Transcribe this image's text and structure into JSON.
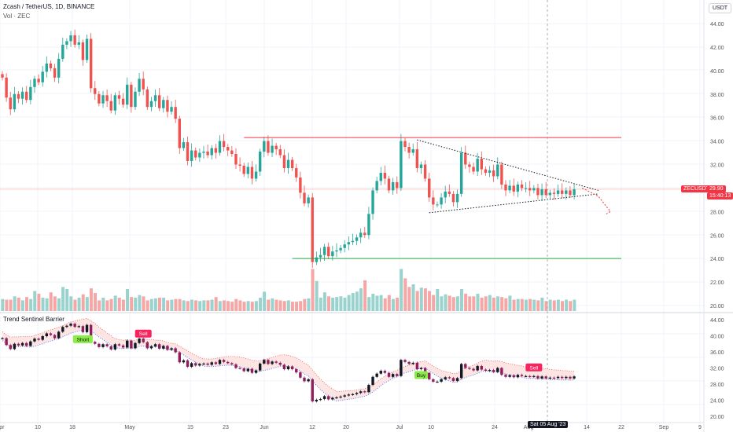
{
  "header": {
    "title": "Zcash / TetherUS, 1D, BINANCE",
    "volume_label": "Vol · ZEC",
    "currency_button": "USDT"
  },
  "indicator": {
    "title": "Trend Sentinel Barrier"
  },
  "price_tag": {
    "symbol": "ZECUSDT",
    "price": "29.90",
    "countdown": "15:40:13"
  },
  "crosshair_date": "Sat 05 Aug '23",
  "colors": {
    "up": "#26a69a",
    "down": "#ef5350",
    "resistance": "#f23645",
    "support": "#22ab46",
    "sell": "#f7245f",
    "buy": "#8bec46"
  },
  "chart_data": [
    {
      "type": "candlestick",
      "panel": "price",
      "ylim": [
        19.5,
        45.5
      ],
      "y_ticks": [
        "44.00",
        "42.00",
        "40.00",
        "38.00",
        "36.00",
        "34.00",
        "32.00",
        "30.00",
        "28.00",
        "26.00",
        "24.00",
        "22.00",
        "20.00"
      ],
      "x_ticks": [
        "Apr",
        "10",
        "18",
        "May",
        "15",
        "23",
        "Jun",
        "12",
        "20",
        "Jul",
        "10",
        "24",
        "Aug",
        "14",
        "22",
        "Sep",
        "9"
      ],
      "close": [
        39.4,
        37.7,
        36.7,
        38.0,
        37.6,
        38.2,
        37.5,
        38.6,
        39.3,
        39.0,
        39.9,
        40.6,
        40.2,
        39.4,
        41.0,
        42.2,
        42.5,
        43.0,
        42.2,
        42.4,
        40.9,
        42.7,
        38.5,
        38.0,
        37.2,
        37.9,
        37.4,
        36.6,
        37.9,
        37.6,
        37.1,
        38.8,
        36.9,
        38.2,
        39.3,
        38.4,
        36.9,
        37.4,
        37.9,
        36.8,
        37.5,
        36.5,
        36.9,
        35.9,
        33.4,
        33.9,
        32.3,
        33.2,
        32.6,
        33.0,
        33.1,
        32.8,
        33.4,
        33.0,
        34.0,
        33.5,
        33.2,
        32.9,
        32.0,
        31.9,
        31.2,
        31.8,
        30.8,
        31.4,
        33.1,
        34.0,
        33.0,
        33.6,
        33.3,
        32.8,
        31.7,
        32.4,
        31.7,
        30.9,
        29.6,
        28.7,
        29.2,
        23.7,
        24.1,
        24.3,
        25.0,
        24.2,
        24.6,
        24.7,
        24.9,
        25.2,
        25.4,
        25.5,
        25.8,
        26.2,
        26.0,
        27.8,
        29.8,
        30.6,
        31.3,
        30.8,
        29.8,
        30.5,
        30.0,
        34.0,
        33.5,
        33.0,
        33.3,
        31.7,
        32.0,
        30.8,
        29.2,
        28.6,
        28.6,
        29.2,
        29.7,
        29.5,
        28.8,
        29.5,
        33.0,
        32.0,
        31.8,
        31.4,
        32.5,
        31.6,
        31.3,
        31.5,
        31.0,
        32.0,
        30.3,
        29.8,
        30.2,
        29.7,
        30.3,
        30.0,
        30.0,
        29.8,
        30.0,
        29.4,
        29.9,
        29.4,
        29.6,
        29.5,
        29.8,
        29.5,
        29.8,
        29.4,
        29.9
      ],
      "volume_ylim": [
        0,
        100
      ],
      "volume": [
        18,
        17,
        17,
        22,
        20,
        16,
        21,
        18,
        30,
        26,
        20,
        19,
        28,
        22,
        19,
        36,
        33,
        22,
        17,
        20,
        25,
        21,
        34,
        27,
        16,
        20,
        16,
        18,
        23,
        20,
        17,
        33,
        21,
        20,
        24,
        22,
        16,
        18,
        19,
        20,
        20,
        16,
        17,
        18,
        18,
        16,
        15,
        17,
        16,
        15,
        16,
        16,
        17,
        21,
        15,
        16,
        15,
        14,
        18,
        16,
        14,
        15,
        14,
        15,
        20,
        29,
        17,
        19,
        17,
        16,
        15,
        16,
        14,
        14,
        15,
        18,
        19,
        63,
        45,
        20,
        28,
        22,
        20,
        21,
        22,
        20,
        24,
        27,
        29,
        34,
        46,
        21,
        26,
        23,
        24,
        19,
        24,
        18,
        20,
        63,
        49,
        36,
        40,
        30,
        35,
        34,
        30,
        24,
        33,
        22,
        25,
        23,
        21,
        22,
        33,
        26,
        22,
        22,
        26,
        20,
        22,
        24,
        20,
        22,
        21,
        19,
        23,
        17,
        18,
        18,
        17,
        18,
        17,
        16,
        20,
        15,
        17,
        16,
        17,
        15,
        17,
        15,
        17
      ]
    },
    {
      "type": "line",
      "panel": "indicator",
      "name": "Trend Sentinel Barrier",
      "ylim": [
        19.5,
        45.0
      ],
      "y_ticks": [
        "44.00",
        "40.00",
        "36.00",
        "32.00",
        "28.00",
        "24.00",
        "20.00"
      ],
      "signals": [
        {
          "label": "Short",
          "type": "buy",
          "candle": 20
        },
        {
          "label": "Sell",
          "type": "sell",
          "candle": 35
        },
        {
          "label": "Buy",
          "type": "buy",
          "candle": 104
        },
        {
          "label": "Sell",
          "type": "sell",
          "candle": 132
        }
      ]
    }
  ],
  "annotations": {
    "resistance_level": 34.3,
    "support_level": 24.0,
    "triangle_upper": [
      {
        "candle": 103,
        "price": 34.1
      },
      {
        "candle": 148,
        "price": 29.8
      }
    ],
    "triangle_lower": [
      {
        "candle": 106,
        "price": 27.9
      },
      {
        "candle": 148,
        "price": 29.5
      }
    ],
    "projection": [
      {
        "candle": 144,
        "price": 30.0
      },
      {
        "candle": 148,
        "price": 29.3
      },
      {
        "candle": 151,
        "price": 28.0
      },
      {
        "candle": 150,
        "price": 27.8
      }
    ]
  }
}
